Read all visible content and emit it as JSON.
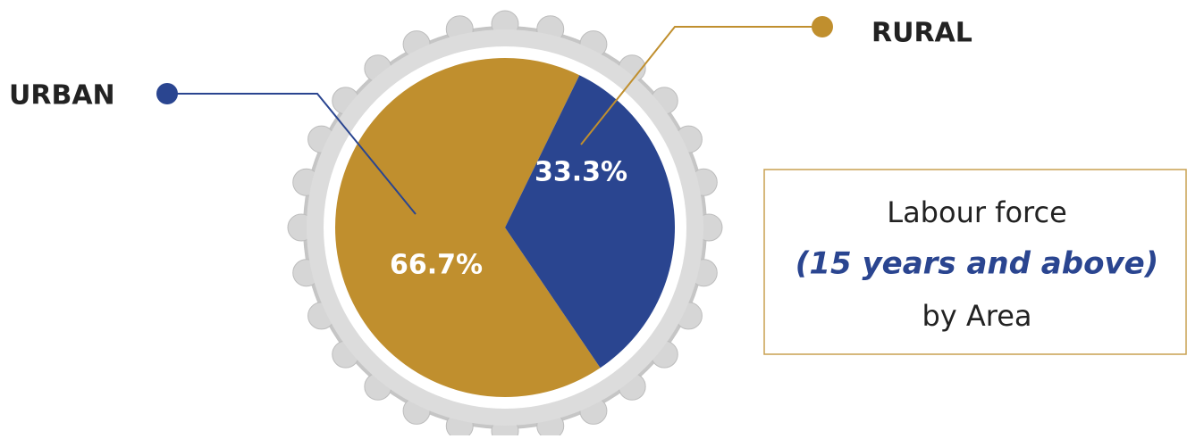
{
  "chart_data": {
    "type": "pie",
    "title": "Labour force",
    "subtitle": "(15 years and above)",
    "caption": "by Area",
    "categories": [
      "URBAN",
      "RURAL"
    ],
    "values": [
      66.7,
      33.3
    ],
    "value_labels": [
      "66.7%",
      "33.3%"
    ],
    "colors": [
      "#c08f2e",
      "#2a4590"
    ]
  }
}
